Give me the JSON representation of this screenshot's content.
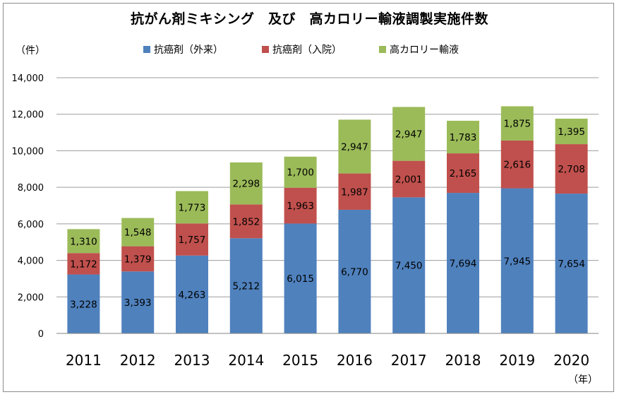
{
  "chart_data": {
    "type": "bar",
    "stacked": true,
    "title": "抗がん剤ミキシング　及び　高カロリー輸液調製実施件数",
    "y_unit_label": "（件）",
    "x_unit_label": "（年）",
    "categories": [
      "2011",
      "2012",
      "2013",
      "2014",
      "2015",
      "2016",
      "2017",
      "2018",
      "2019",
      "2020"
    ],
    "series": [
      {
        "name": "抗癌剤（外来）",
        "color": "#4f81bd",
        "values": [
          3228,
          3393,
          4263,
          5212,
          6015,
          6770,
          7450,
          7694,
          7945,
          7654
        ],
        "labels": [
          "3,228",
          "3,393",
          "4,263",
          "5,212",
          "6,015",
          "6,770",
          "7,450",
          "7,694",
          "7,945",
          "7,654"
        ]
      },
      {
        "name": "抗癌剤（入院）",
        "color": "#c0504d",
        "values": [
          1172,
          1379,
          1757,
          1852,
          1963,
          1987,
          2001,
          2165,
          2616,
          2708
        ],
        "labels": [
          "1,172",
          "1,379",
          "1,757",
          "1,852",
          "1,963",
          "1,987",
          "2,001",
          "2,165",
          "2,616",
          "2,708"
        ]
      },
      {
        "name": "高カロリー輸液",
        "color": "#9bbb59",
        "values": [
          1310,
          1548,
          1773,
          2298,
          1700,
          2947,
          2947,
          1783,
          1875,
          1395
        ],
        "labels": [
          "1,310",
          "1,548",
          "1,773",
          "2,298",
          "1,700",
          "2,947",
          "2,947",
          "1,783",
          "1,875",
          "1,395"
        ]
      }
    ],
    "ylim": [
      0,
      14000
    ],
    "yticks": [
      0,
      2000,
      4000,
      6000,
      8000,
      10000,
      12000,
      14000
    ],
    "ytick_labels": [
      "0",
      "2,000",
      "4,000",
      "6,000",
      "8,000",
      "10,000",
      "12,000",
      "14,000"
    ],
    "grid": true,
    "legend_position": "top"
  }
}
